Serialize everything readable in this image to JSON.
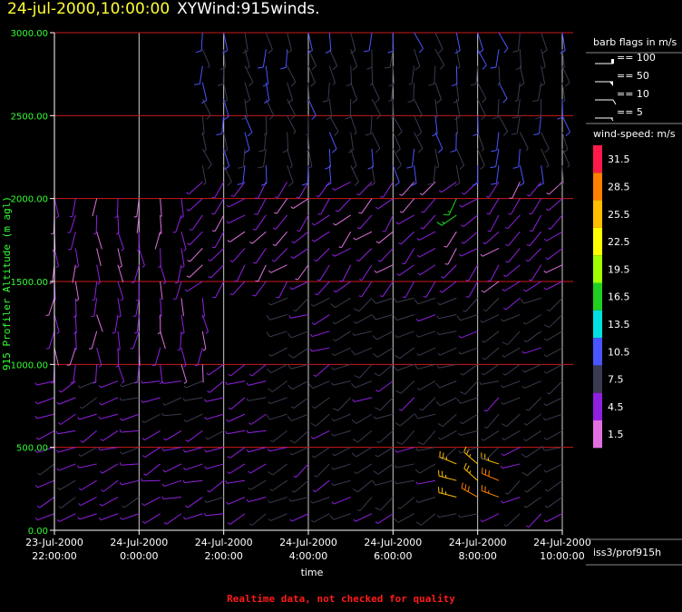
{
  "title": {
    "timestamp": "24-jul-2000,10:00:00",
    "name": "XYWind:915winds."
  },
  "footer_note": "Realtime data, not checked for quality",
  "source_label": "iss3/prof915h",
  "legend": {
    "barb_title": "barb flags in m/s",
    "barbs": [
      {
        "value": 100,
        "label": "== 100"
      },
      {
        "value": 50,
        "label": "== 50"
      },
      {
        "value": 10,
        "label": "== 10"
      },
      {
        "value": 5,
        "label": "== 5"
      }
    ],
    "speed_title": "wind-speed: m/s",
    "colors": [
      {
        "label": "31.5",
        "color": "#ff1a4a"
      },
      {
        "label": "28.5",
        "color": "#ff7f00"
      },
      {
        "label": "25.5",
        "color": "#ffbf00"
      },
      {
        "label": "22.5",
        "color": "#ffff00"
      },
      {
        "label": "19.5",
        "color": "#a0ff00"
      },
      {
        "label": "16.5",
        "color": "#20d020"
      },
      {
        "label": "13.5",
        "color": "#00e0e0"
      },
      {
        "label": "10.5",
        "color": "#4a55ff"
      },
      {
        "label": "7.5",
        "color": "#3a3a50"
      },
      {
        "label": "4.5",
        "color": "#9020e0"
      },
      {
        "label": "1.5",
        "color": "#e070e0"
      }
    ]
  },
  "chart_data": {
    "type": "scatter",
    "subtype": "wind-barbs",
    "ylabel": "915 Profiler Altitude (m agl)",
    "xlabel": "time",
    "ylim": [
      0,
      3000
    ],
    "yticks": [
      "0.00",
      "500.00",
      "1000.00",
      "1500.00",
      "2000.00",
      "2500.00",
      "3000.00"
    ],
    "ytick_values": [
      0,
      500,
      1000,
      1500,
      2000,
      2500,
      3000
    ],
    "xlim_hours": [
      22.0,
      34.0
    ],
    "xticks": [
      {
        "hour": 22.0,
        "line1": "23-Jul-2000",
        "line2": "22:00:00"
      },
      {
        "hour": 24.0,
        "line1": "24-Jul-2000",
        "line2": "0:00:00"
      },
      {
        "hour": 26.0,
        "line1": "24-Jul-2000",
        "line2": "2:00:00"
      },
      {
        "hour": 28.0,
        "line1": "24-Jul-2000",
        "line2": "4:00:00"
      },
      {
        "hour": 30.0,
        "line1": "24-Jul-2000",
        "line2": "6:00:00"
      },
      {
        "hour": 32.0,
        "line1": "24-Jul-2000",
        "line2": "8:00:00"
      },
      {
        "hour": 34.0,
        "line1": "24-Jul-2000",
        "line2": "10:00:00"
      }
    ],
    "vertical_grid_hours": [
      24,
      26,
      28,
      30,
      32,
      34
    ],
    "horizontal_grid": [
      500,
      1000,
      1500,
      2000,
      2500,
      3000
    ],
    "grid_color_h": "#cc1a1a",
    "grid_color_v": "#ffffff",
    "axis_color": "#ffffff",
    "tick_label_color": "#33ff33",
    "times_hours": [
      22.0,
      22.5,
      23.0,
      23.5,
      24.0,
      24.5,
      25.0,
      25.5,
      26.0,
      26.5,
      27.0,
      27.5,
      28.0,
      28.5,
      29.0,
      29.5,
      30.0,
      30.5,
      31.0,
      31.5,
      32.0,
      32.5,
      33.0,
      33.5,
      34.0
    ],
    "altitudes_m": [
      100,
      200,
      300,
      400,
      500,
      600,
      700,
      800,
      900,
      1000,
      1100,
      1200,
      1300,
      1400,
      1500,
      1600,
      1700,
      1800,
      1900,
      2000,
      2100,
      2200,
      2300,
      2400,
      2500,
      2600,
      2700,
      2800,
      2900,
      3000
    ],
    "regimes": [
      {
        "z": [
          0,
          1000
        ],
        "t": [
          22.0,
          27.5
        ],
        "dir_deg": 250,
        "speed": 5.0
      },
      {
        "z": [
          0,
          1500
        ],
        "t": [
          27.5,
          34.0
        ],
        "dir_deg": 240,
        "speed": 7.0
      },
      {
        "z": [
          1000,
          2000
        ],
        "t": [
          22.0,
          25.5
        ],
        "dir_deg": 180,
        "speed": 3.5
      },
      {
        "z": [
          1500,
          2200
        ],
        "t": [
          25.5,
          34.0
        ],
        "dir_deg": 225,
        "speed": 4.0
      },
      {
        "z": [
          2200,
          3000
        ],
        "t": [
          25.5,
          34.0
        ],
        "dir_deg": 170,
        "speed": 8.5
      },
      {
        "z": [
          200,
          400
        ],
        "t": [
          31.5,
          32.6
        ],
        "dir_deg": 300,
        "speed": 27.0
      },
      {
        "z": [
          1900,
          2000
        ],
        "t": [
          31.3,
          31.6
        ],
        "dir_deg": 220,
        "speed": 18.0
      }
    ]
  }
}
